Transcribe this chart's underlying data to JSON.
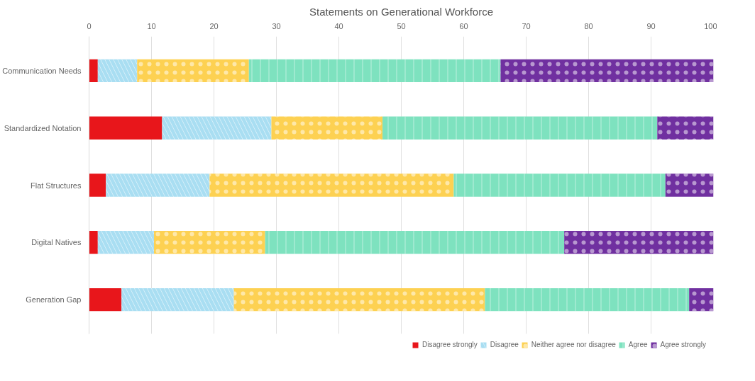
{
  "chart_data": {
    "type": "bar",
    "orientation": "horizontal",
    "stacked": true,
    "title": "Statements on Generational Workforce",
    "categories": [
      "Communication Needs",
      "Standardized Notation",
      "Flat Structures",
      "Digital Natives",
      "Generation Gap"
    ],
    "series": [
      {
        "name": "Disagree strongly",
        "color": "#e8161b",
        "values": [
          1.4,
          11.7,
          2.7,
          1.4,
          5.2
        ]
      },
      {
        "name": "Disagree",
        "color": "#a9def2",
        "values": [
          6.3,
          17.5,
          16.6,
          9.0,
          18.0
        ]
      },
      {
        "name": "Neither agree nor disagree",
        "color": "#fdd152",
        "values": [
          17.9,
          17.8,
          39.1,
          17.8,
          40.2
        ]
      },
      {
        "name": "Agree",
        "color": "#7ee2bf",
        "values": [
          40.3,
          44.0,
          33.9,
          47.9,
          32.7
        ]
      },
      {
        "name": "Agree strongly",
        "color": "#7030a0",
        "values": [
          34.1,
          9.0,
          7.7,
          23.9,
          3.9
        ]
      }
    ],
    "xlim": [
      0,
      100
    ],
    "xticks": [
      0,
      10,
      20,
      30,
      40,
      50,
      60,
      70,
      80,
      90,
      100
    ],
    "grid": "x",
    "legend": "bottom"
  }
}
